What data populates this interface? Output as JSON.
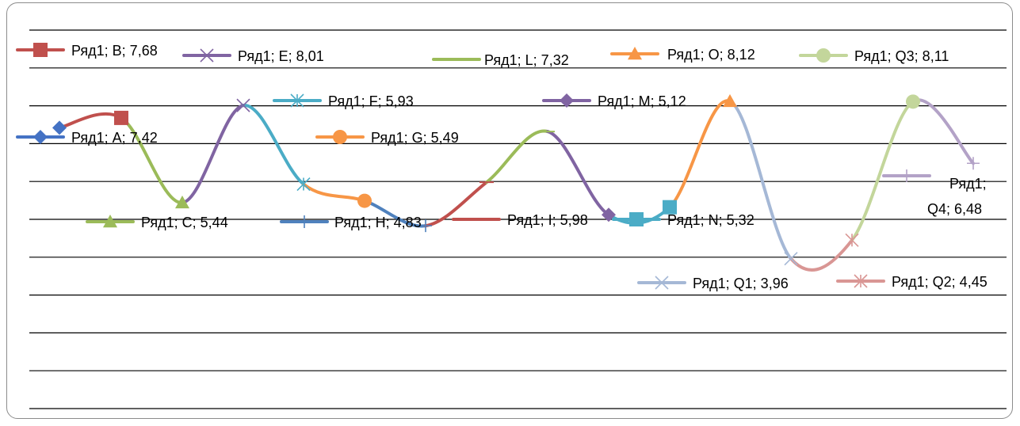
{
  "chart_data": {
    "type": "line",
    "smooth": true,
    "grid": true,
    "ylim": [
      0,
      10
    ],
    "series_name": "Ряд1",
    "points": [
      {
        "x": "A",
        "y": 7.42,
        "label": "Ряд1; A; 7,42",
        "color": "#4472C4",
        "marker": "diamond"
      },
      {
        "x": "B",
        "y": 7.68,
        "label": "Ряд1; B; 7,68",
        "color": "#C0504D",
        "marker": "square"
      },
      {
        "x": "C",
        "y": 5.44,
        "label": "Ряд1; C; 5,44",
        "color": "#9BBB59",
        "marker": "triangle"
      },
      {
        "x": "E",
        "y": 8.01,
        "label": "Ряд1; E; 8,01",
        "color": "#8064A2",
        "marker": "x"
      },
      {
        "x": "F",
        "y": 5.93,
        "label": "Ряд1; F; 5,93",
        "color": "#4BACC6",
        "marker": "star"
      },
      {
        "x": "G",
        "y": 5.49,
        "label": "Ряд1; G; 5,49",
        "color": "#F79646",
        "marker": "circle"
      },
      {
        "x": "H",
        "y": 4.83,
        "label": "Ряд1; H; 4,83",
        "color": "#4F81BD",
        "marker": "plus"
      },
      {
        "x": "I",
        "y": 5.98,
        "label": "Ряд1; I; 5,98",
        "color": "#C0504D",
        "marker": "dash"
      },
      {
        "x": "L",
        "y": 7.32,
        "label": "Ряд1; L; 7,32",
        "color": "#9BBB59",
        "marker": "dash"
      },
      {
        "x": "M",
        "y": 5.12,
        "label": "Ряд1; M; 5,12",
        "color": "#8064A2",
        "marker": "diamond"
      },
      {
        "x": "N",
        "y": 5.32,
        "label": "Ряд1; N; 5,32",
        "color": "#4BACC6",
        "marker": "square"
      },
      {
        "x": "O",
        "y": 8.12,
        "label": "Ряд1; O; 8,12",
        "color": "#F79646",
        "marker": "triangle"
      },
      {
        "x": "Q1",
        "y": 3.96,
        "label": "Ряд1; Q1; 3,96",
        "color": "#A5B8D6",
        "marker": "x"
      },
      {
        "x": "Q2",
        "y": 4.45,
        "label": "Ряд1; Q2; 4,45",
        "color": "#D99694",
        "marker": "star"
      },
      {
        "x": "Q3",
        "y": 8.11,
        "label": "Ряд1; Q3; 8,11",
        "color": "#C3D69B",
        "marker": "circle"
      },
      {
        "x": "Q4",
        "y": 6.48,
        "label": "Ряд1; Q4; 6,48",
        "color": "#B3A2C7",
        "marker": "plus"
      }
    ]
  }
}
